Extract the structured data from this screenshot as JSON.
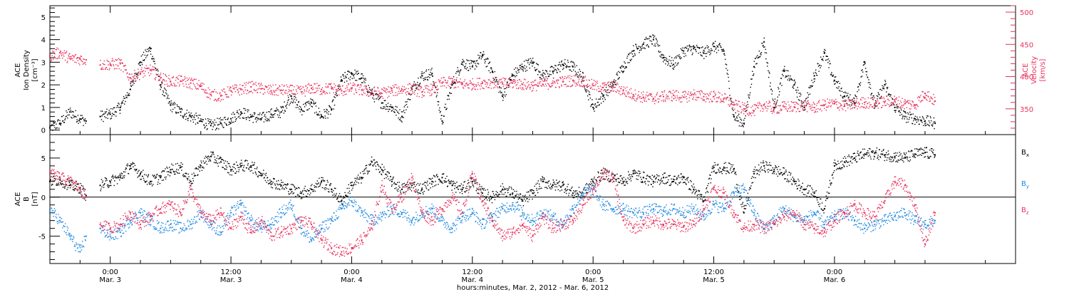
{
  "chart_data": [
    {
      "type": "scatter",
      "panel": "top",
      "left_axis": {
        "label_lines": [
          "ACE",
          "Ion Density",
          "[cm⁻³]"
        ],
        "ylim": [
          -0.2,
          5.5
        ],
        "ticks": [
          0,
          1,
          2,
          3,
          4,
          5
        ],
        "color": "#000000"
      },
      "right_axis": {
        "label_lines": [
          "ACE",
          "Velocity",
          "[km/s]"
        ],
        "ylim": [
          310,
          510
        ],
        "ticks": [
          350,
          400,
          450,
          500
        ],
        "color": "#e8305c"
      },
      "x_unit": "hours since Mar. 2, 2012 00:00",
      "xlim": [
        18,
        114
      ],
      "series": [
        {
          "color": "#000000",
          "axis": "left",
          "x": [
            18,
            19,
            20,
            21,
            21.6,
            22,
            23,
            24,
            25,
            26,
            27,
            28,
            29,
            30,
            31,
            32,
            33,
            34,
            35,
            36,
            37,
            38,
            39,
            40,
            41,
            42,
            43,
            44,
            45,
            46,
            47,
            48,
            49,
            50,
            51,
            52,
            53,
            54,
            55,
            56,
            57,
            58,
            59,
            60,
            61,
            62,
            63,
            64,
            65,
            66,
            67,
            68,
            69,
            70,
            71,
            72,
            73,
            74,
            75,
            76,
            77,
            78,
            79,
            80,
            81,
            82,
            83,
            84,
            85,
            86,
            87,
            88,
            89,
            90,
            91,
            92,
            93,
            94,
            95,
            96,
            97,
            98,
            99,
            100,
            101,
            102,
            103,
            104,
            105,
            106
          ],
          "y": [
            0.1,
            0.3,
            0.8,
            0.5,
            0.4,
            null,
            0.6,
            0.7,
            1.0,
            1.8,
            3.0,
            3.6,
            2.0,
            1.1,
            0.8,
            0.6,
            0.4,
            0.2,
            0.3,
            0.5,
            0.8,
            0.6,
            0.5,
            0.7,
            0.8,
            1.5,
            0.9,
            1.2,
            0.6,
            0.9,
            2.2,
            2.5,
            2.3,
            1.6,
            1.2,
            1.0,
            0.6,
            1.8,
            2.4,
            2.5,
            0.4,
            2.0,
            3.0,
            2.8,
            3.3,
            2.6,
            1.5,
            2.4,
            2.8,
            3.0,
            2.4,
            2.6,
            2.9,
            2.8,
            2.3,
            1.0,
            1.5,
            2.0,
            2.8,
            3.5,
            3.8,
            4.0,
            3.2,
            2.9,
            3.5,
            3.6,
            3.4,
            3.7,
            3.5,
            0.6,
            0.3,
            2.8,
            3.9,
            1.0,
            2.6,
            2.0,
            1.0,
            2.4,
            3.4,
            2.2,
            1.5,
            1.2,
            3.0,
            1.1,
            2.0,
            1.0,
            0.6,
            0.5,
            0.4,
            0.3
          ]
        },
        {
          "color": "#e8305c",
          "axis": "right",
          "x": [
            18,
            19,
            20,
            21,
            21.6,
            22,
            23,
            24,
            25,
            26,
            27,
            28,
            29,
            30,
            31,
            32,
            33,
            34,
            35,
            36,
            37,
            38,
            39,
            40,
            41,
            42,
            43,
            44,
            45,
            46,
            47,
            48,
            49,
            50,
            51,
            52,
            53,
            54,
            55,
            56,
            57,
            58,
            59,
            60,
            61,
            62,
            63,
            64,
            65,
            66,
            67,
            68,
            69,
            70,
            71,
            72,
            73,
            74,
            75,
            76,
            77,
            78,
            79,
            80,
            81,
            82,
            83,
            84,
            85,
            86,
            87,
            88,
            89,
            90,
            91,
            92,
            93,
            94,
            95,
            96,
            97,
            98,
            99,
            100,
            101,
            102,
            103,
            104,
            105,
            106
          ],
          "y": [
            432,
            437,
            428,
            427,
            426,
            null,
            418,
            419,
            420,
            398,
            405,
            410,
            398,
            392,
            393,
            390,
            385,
            372,
            370,
            378,
            380,
            384,
            381,
            378,
            379,
            378,
            376,
            382,
            380,
            382,
            378,
            382,
            379,
            376,
            374,
            378,
            380,
            381,
            376,
            380,
            390,
            391,
            388,
            388,
            390,
            391,
            389,
            390,
            388,
            386,
            388,
            390,
            392,
            394,
            393,
            386,
            383,
            384,
            378,
            372,
            368,
            366,
            369,
            371,
            368,
            372,
            369,
            369,
            366,
            356,
            350,
            347,
            356,
            350,
            353,
            353,
            355,
            352,
            356,
            358,
            355,
            357,
            360,
            358,
            361,
            362,
            358,
            356,
            374,
            362
          ]
        }
      ]
    },
    {
      "type": "scatter",
      "panel": "bottom",
      "left_axis": {
        "label_lines": [
          "ACE",
          "B",
          "[nT]"
        ],
        "ylim": [
          -8.5,
          8
        ],
        "ticks": [
          -5,
          0,
          5
        ],
        "color": "#000000"
      },
      "x_unit": "hours since Mar. 2, 2012 00:00",
      "xlim": [
        18,
        114
      ],
      "legend_placement": "right",
      "zero_line": true,
      "series": [
        {
          "name": "Bx",
          "color": "#000000",
          "x": [
            18,
            19,
            20,
            21,
            21.6,
            22,
            23,
            24,
            25,
            26,
            27,
            28,
            29,
            30,
            31,
            32,
            33,
            34,
            35,
            36,
            37,
            38,
            39,
            40,
            41,
            42,
            43,
            44,
            45,
            46,
            47,
            48,
            49,
            50,
            51,
            52,
            53,
            54,
            55,
            56,
            57,
            58,
            59,
            60,
            61,
            62,
            63,
            64,
            65,
            66,
            67,
            68,
            69,
            70,
            71,
            72,
            73,
            74,
            75,
            76,
            77,
            78,
            79,
            80,
            81,
            82,
            83,
            84,
            85,
            86,
            87,
            88,
            89,
            90,
            91,
            92,
            93,
            94,
            95,
            96,
            97,
            98,
            99,
            100,
            101,
            102,
            103,
            104,
            105,
            106
          ],
          "y": [
            2.0,
            2.2,
            1.5,
            1.2,
            0.2,
            null,
            1.5,
            2.0,
            2.5,
            4.0,
            3.0,
            2.0,
            2.5,
            3.5,
            3.8,
            2.0,
            4.0,
            5.2,
            4.5,
            3.5,
            4.0,
            4.0,
            3.0,
            2.0,
            1.5,
            1.0,
            0.5,
            1.0,
            2.0,
            1.0,
            -0.5,
            1.5,
            2.5,
            4.5,
            3.5,
            2.0,
            1.0,
            1.5,
            1.0,
            2.0,
            2.5,
            1.5,
            1.0,
            2.0,
            0.5,
            0.0,
            1.0,
            0.5,
            -0.5,
            0.5,
            2.0,
            1.5,
            1.5,
            0.5,
            0.5,
            2.0,
            3.0,
            2.5,
            2.0,
            3.0,
            2.5,
            2.0,
            2.5,
            2.0,
            2.5,
            1.0,
            -0.5,
            3.8,
            3.7,
            3.6,
            -2.0,
            3.0,
            4.0,
            3.5,
            3.0,
            2.0,
            1.0,
            0.5,
            -1.5,
            4.0,
            4.5,
            5.0,
            5.5,
            5.6,
            5.4,
            5.2,
            5.0,
            5.5,
            5.7,
            5.4
          ]
        },
        {
          "name": "By",
          "color": "#1f88e0",
          "x": [
            18,
            19,
            20,
            21,
            21.6,
            22,
            23,
            24,
            25,
            26,
            27,
            28,
            29,
            30,
            31,
            32,
            33,
            34,
            35,
            36,
            37,
            38,
            39,
            40,
            41,
            42,
            43,
            44,
            45,
            46,
            47,
            48,
            49,
            50,
            51,
            52,
            53,
            54,
            55,
            56,
            57,
            58,
            59,
            60,
            61,
            62,
            63,
            64,
            65,
            66,
            67,
            68,
            69,
            70,
            71,
            72,
            73,
            74,
            75,
            76,
            77,
            78,
            79,
            80,
            81,
            82,
            83,
            84,
            85,
            86,
            87,
            88,
            89,
            90,
            91,
            92,
            93,
            94,
            95,
            96,
            97,
            98,
            99,
            100,
            101,
            102,
            103,
            104,
            105,
            106
          ],
          "y": [
            -1.5,
            -3.0,
            -5.0,
            -7.0,
            -5.0,
            null,
            -4.0,
            -5.0,
            -4.5,
            -3.0,
            -2.0,
            -3.0,
            -4.0,
            -3.5,
            -4.0,
            -3.5,
            -2.0,
            -3.5,
            -4.5,
            -2.0,
            -1.0,
            -3.0,
            -4.0,
            -3.5,
            -2.0,
            -1.0,
            -4.0,
            -5.5,
            -4.0,
            -3.0,
            -1.5,
            -0.5,
            -2.0,
            -3.0,
            -2.5,
            -1.5,
            -2.0,
            -3.0,
            -2.0,
            -1.5,
            -3.0,
            -4.0,
            -2.5,
            -2.0,
            -3.5,
            -2.5,
            -1.5,
            -1.0,
            -2.0,
            -3.0,
            -2.0,
            -2.5,
            -3.5,
            -1.5,
            0.5,
            1.0,
            -1.0,
            -1.5,
            -1.5,
            -2.0,
            -2.0,
            -1.5,
            -1.8,
            -1.5,
            -2.0,
            -1.5,
            -2.5,
            -1.0,
            -1.5,
            0.5,
            1.0,
            -2.0,
            -4.0,
            -3.0,
            -1.5,
            -2.5,
            -3.0,
            -2.0,
            -3.5,
            -2.5,
            -2.0,
            -3.0,
            -4.0,
            -3.5,
            -3.0,
            -2.5,
            -2.0,
            -3.0,
            -3.5,
            -3.0
          ]
        },
        {
          "name": "Bz",
          "color": "#e8305c",
          "x": [
            18,
            19,
            20,
            21,
            21.6,
            22,
            23,
            24,
            25,
            26,
            27,
            28,
            29,
            30,
            31,
            32,
            33,
            34,
            35,
            36,
            37,
            38,
            39,
            40,
            41,
            42,
            43,
            44,
            45,
            46,
            47,
            48,
            49,
            50,
            51,
            52,
            53,
            54,
            55,
            56,
            57,
            58,
            59,
            60,
            61,
            62,
            63,
            64,
            65,
            66,
            67,
            68,
            69,
            70,
            71,
            72,
            73,
            74,
            75,
            76,
            77,
            78,
            79,
            80,
            81,
            82,
            83,
            84,
            85,
            86,
            87,
            88,
            89,
            90,
            91,
            92,
            93,
            94,
            95,
            96,
            97,
            98,
            99,
            100,
            101,
            102,
            103,
            104,
            105,
            106
          ],
          "y": [
            3.0,
            2.5,
            2.0,
            1.0,
            0.0,
            null,
            -3.5,
            -4.0,
            -3.5,
            -2.0,
            -3.5,
            -2.5,
            -1.5,
            -1.0,
            -2.0,
            1.0,
            -2.0,
            -3.0,
            -2.0,
            -4.0,
            -2.5,
            -4.5,
            -3.0,
            -5.0,
            -4.5,
            -4.0,
            -3.0,
            -3.5,
            -5.5,
            -6.5,
            -7.0,
            -6.5,
            -5.5,
            -4.0,
            1.5,
            -1.5,
            0.0,
            2.5,
            -2.0,
            -3.0,
            -1.5,
            0.0,
            -2.0,
            3.0,
            -0.5,
            -3.0,
            -5.0,
            -4.5,
            -3.5,
            -5.0,
            -2.5,
            -4.0,
            -3.5,
            -3.0,
            -1.0,
            1.0,
            3.0,
            2.5,
            -3.0,
            -4.0,
            -3.5,
            -3.0,
            -3.5,
            -3.5,
            -3.8,
            -3.5,
            -1.5,
            1.0,
            0.5,
            -2.0,
            -4.0,
            -3.5,
            -4.0,
            -3.5,
            -2.5,
            -2.0,
            -3.5,
            -4.0,
            -4.5,
            -3.0,
            -2.0,
            -1.0,
            -2.0,
            -2.5,
            -0.5,
            2.0,
            1.5,
            -1.0,
            -6.0,
            -2.0
          ]
        }
      ],
      "legend": [
        {
          "base": "B",
          "sub": "x",
          "color": "#000000"
        },
        {
          "base": "B",
          "sub": "y",
          "color": "#1f88e0"
        },
        {
          "base": "B",
          "sub": "z",
          "color": "#e8305c"
        }
      ]
    }
  ],
  "x_axis": {
    "ticks": [
      {
        "x": 24,
        "time": "0:00",
        "date": "Mar. 3"
      },
      {
        "x": 36,
        "time": "12:00",
        "date": "Mar. 3"
      },
      {
        "x": 48,
        "time": "0:00",
        "date": "Mar. 4"
      },
      {
        "x": 60,
        "time": "12:00",
        "date": "Mar. 4"
      },
      {
        "x": 72,
        "time": "0:00",
        "date": "Mar. 5"
      },
      {
        "x": 84,
        "time": "12:00",
        "date": "Mar. 5"
      },
      {
        "x": 96,
        "time": "0:00",
        "date": "Mar. 6"
      }
    ],
    "title": "hours:minutes, Mar. 2, 2012 - Mar. 6, 2012"
  }
}
